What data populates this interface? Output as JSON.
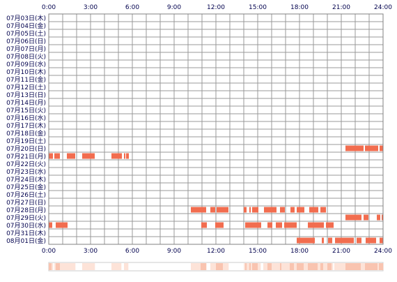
{
  "chart_data": {
    "type": "timeline",
    "x_unit": "hours",
    "xlim": [
      0,
      24
    ],
    "x_ticks": [
      0,
      3,
      6,
      9,
      12,
      15,
      18,
      21,
      24
    ],
    "x_tick_labels": [
      "0:00",
      "3:00",
      "6:00",
      "9:00",
      "12:00",
      "15:00",
      "18:00",
      "21:00",
      "24:00"
    ],
    "grid": "every hour",
    "colors": {
      "bar": "#f26d4f",
      "grid": "#999999",
      "frame": "#808080",
      "text": "#00004d",
      "summary_light": "#fde3d8",
      "summary_medium": "#f9c4b0"
    },
    "rows": [
      {
        "label": "07月03日(木)",
        "intervals": []
      },
      {
        "label": "07月04日(金)",
        "intervals": []
      },
      {
        "label": "07月05日(土)",
        "intervals": []
      },
      {
        "label": "07月06日(日)",
        "intervals": []
      },
      {
        "label": "07月07日(月)",
        "intervals": []
      },
      {
        "label": "07月08日(火)",
        "intervals": []
      },
      {
        "label": "07月09日(水)",
        "intervals": []
      },
      {
        "label": "07月10日(木)",
        "intervals": []
      },
      {
        "label": "07月11日(金)",
        "intervals": []
      },
      {
        "label": "07月12日(土)",
        "intervals": []
      },
      {
        "label": "07月13日(日)",
        "intervals": []
      },
      {
        "label": "07月14日(月)",
        "intervals": []
      },
      {
        "label": "07月15日(火)",
        "intervals": []
      },
      {
        "label": "07月16日(水)",
        "intervals": []
      },
      {
        "label": "07月17日(木)",
        "intervals": []
      },
      {
        "label": "07月18日(金)",
        "intervals": []
      },
      {
        "label": "07月19日(土)",
        "intervals": []
      },
      {
        "label": "07月20日(日)",
        "intervals": [
          [
            21.3,
            22.6
          ],
          [
            22.7,
            23.65
          ],
          [
            23.75,
            24.0
          ]
        ]
      },
      {
        "label": "07月21日(月)",
        "intervals": [
          [
            0.0,
            0.3
          ],
          [
            0.4,
            0.8
          ],
          [
            1.3,
            1.9
          ],
          [
            2.4,
            3.3
          ],
          [
            4.5,
            5.25
          ],
          [
            5.4,
            5.5
          ],
          [
            5.55,
            5.75
          ]
        ]
      },
      {
        "label": "07月22日(火)",
        "intervals": []
      },
      {
        "label": "07月23日(水)",
        "intervals": []
      },
      {
        "label": "07月24日(木)",
        "intervals": []
      },
      {
        "label": "07月25日(金)",
        "intervals": []
      },
      {
        "label": "07月26日(土)",
        "intervals": []
      },
      {
        "label": "07月27日(日)",
        "intervals": []
      },
      {
        "label": "07月28日(月)",
        "intervals": [
          [
            10.2,
            11.3
          ],
          [
            11.6,
            11.95
          ],
          [
            12.05,
            12.9
          ],
          [
            14.0,
            14.2
          ],
          [
            14.4,
            14.5
          ],
          [
            14.6,
            15.05
          ],
          [
            15.45,
            16.35
          ],
          [
            16.6,
            16.95
          ],
          [
            17.35,
            17.65
          ],
          [
            17.8,
            18.35
          ],
          [
            18.7,
            19.35
          ],
          [
            19.5,
            19.9
          ]
        ]
      },
      {
        "label": "07月29日(火)",
        "intervals": [
          [
            21.3,
            22.45
          ],
          [
            22.6,
            22.95
          ],
          [
            23.55,
            23.8
          ],
          [
            23.9,
            24.0
          ]
        ]
      },
      {
        "label": "07月30日(水)",
        "intervals": [
          [
            0.0,
            0.25
          ],
          [
            0.5,
            1.35
          ],
          [
            10.95,
            11.35
          ],
          [
            11.95,
            12.55
          ],
          [
            14.1,
            15.25
          ],
          [
            15.7,
            16.05
          ],
          [
            16.3,
            16.75
          ],
          [
            16.9,
            17.8
          ],
          [
            18.6,
            19.75
          ],
          [
            19.9,
            20.45
          ]
        ]
      },
      {
        "label": "07月31日(木)",
        "intervals": []
      },
      {
        "label": "08月01日(金)",
        "intervals": [
          [
            17.8,
            19.1
          ],
          [
            19.6,
            19.75
          ],
          [
            20.05,
            20.35
          ],
          [
            20.55,
            21.9
          ],
          [
            22.1,
            22.45
          ],
          [
            22.75,
            23.5
          ],
          [
            23.75,
            24.0
          ]
        ]
      }
    ]
  }
}
